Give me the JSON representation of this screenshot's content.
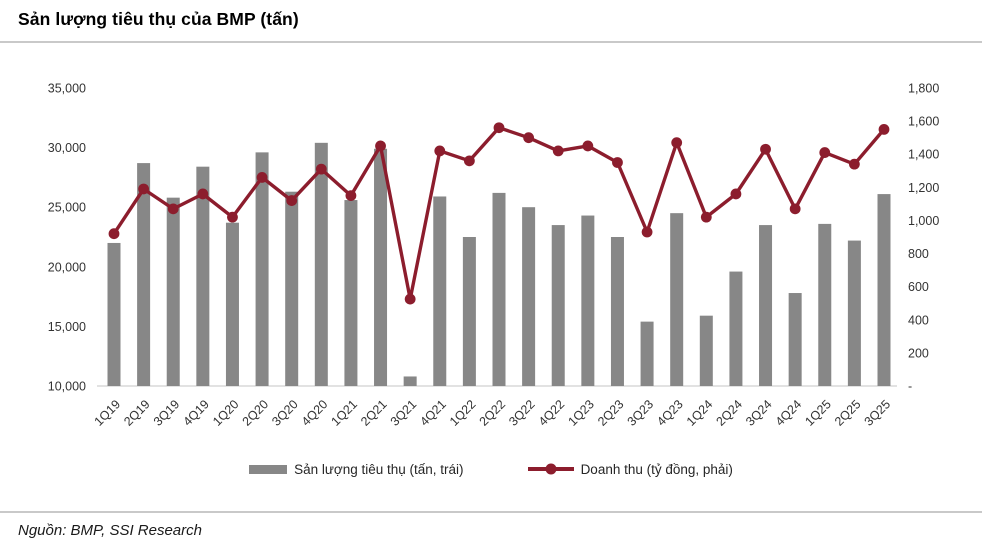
{
  "header": {
    "title": "Sản lượng tiêu thụ của BMP (tấn)"
  },
  "legend": {
    "bar_label": "Sản lượng tiêu thụ (tấn, trái)",
    "line_label": "Doanh thu (tỷ đồng, phải)"
  },
  "footer": {
    "source": "Nguồn: BMP, SSI Research"
  },
  "colors": {
    "bar": "#878787",
    "line": "#8C1D2D",
    "axis_text": "#333333",
    "axis_line": "#D9D9D9"
  },
  "chart_data": {
    "type": "bar",
    "subtype": "combo-bar-line",
    "title": "Sản lượng tiêu thụ của BMP (tấn)",
    "grid": false,
    "legend_position": "bottom",
    "categories": [
      "1Q19",
      "2Q19",
      "3Q19",
      "4Q19",
      "1Q20",
      "2Q20",
      "3Q20",
      "4Q20",
      "1Q21",
      "2Q21",
      "3Q21",
      "4Q21",
      "1Q22",
      "2Q22",
      "3Q22",
      "4Q22",
      "1Q23",
      "2Q23",
      "3Q23",
      "4Q23",
      "1Q24",
      "2Q24",
      "3Q24",
      "4Q24",
      "1Q25",
      "2Q25",
      "3Q25"
    ],
    "series": [
      {
        "name": "Sản lượng tiêu thụ (tấn, trái)",
        "type": "bar",
        "axis": "left",
        "values": [
          22000,
          28700,
          25800,
          28400,
          23700,
          29600,
          26300,
          30400,
          25600,
          29900,
          10800,
          25900,
          22500,
          26200,
          25000,
          23500,
          24300,
          22500,
          15400,
          24500,
          15900,
          19600,
          23500,
          17800,
          23600,
          22200,
          26100
        ]
      },
      {
        "name": "Doanh thu (tỷ đồng, phải)",
        "type": "line",
        "axis": "right",
        "values": [
          920,
          1190,
          1070,
          1160,
          1020,
          1260,
          1120,
          1310,
          1150,
          1450,
          525,
          1420,
          1360,
          1560,
          1500,
          1420,
          1450,
          1350,
          930,
          1470,
          1020,
          1160,
          1430,
          1070,
          1410,
          1340,
          1550
        ]
      }
    ],
    "left_axis": {
      "min": 10000,
      "max": 35000,
      "step": 5000,
      "tick_labels": [
        "10,000",
        "15,000",
        "20,000",
        "25,000",
        "30,000",
        "35,000"
      ]
    },
    "right_axis": {
      "min": 0,
      "max": 1800,
      "step": 200,
      "tick_labels": [
        "-",
        "200",
        "400",
        "600",
        "800",
        "1,000",
        "1,200",
        "1,400",
        "1,600",
        "1,800"
      ]
    }
  }
}
